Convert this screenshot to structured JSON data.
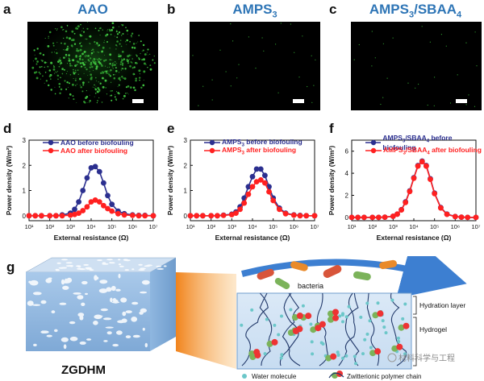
{
  "panels": {
    "a": {
      "letter": "a",
      "title": "AAO"
    },
    "b": {
      "letter": "b",
      "title_main": "AMPS",
      "title_sub": "3"
    },
    "c": {
      "letter": "c",
      "title_main": "AMPS",
      "title_sub1": "3",
      "title_mid": "/SBAA",
      "title_sub2": "4"
    },
    "d": {
      "letter": "d"
    },
    "e": {
      "letter": "e"
    },
    "f": {
      "letter": "f"
    },
    "g": {
      "letter": "g"
    }
  },
  "colors": {
    "before": "#2b2f8f",
    "after": "#ff2020",
    "title_blue": "#2e75b6",
    "arrow_blue": "#3d7fd1"
  },
  "chart_data": [
    {
      "type": "line",
      "ylabel": "Power density (W/m²)",
      "xlabel": "External resistance (Ω)",
      "x": [
        1,
        1.3,
        1.6,
        2,
        2.3,
        2.6,
        3,
        3.2,
        3.4,
        3.6,
        3.8,
        4,
        4.2,
        4.4,
        4.6,
        4.8,
        5,
        5.3,
        5.6,
        6,
        6.3,
        6.6,
        7
      ],
      "xlim": [
        1,
        7
      ],
      "ylim": [
        -0.2,
        3.0
      ],
      "yticks": [
        "0",
        "1",
        "2",
        "3"
      ],
      "xticks": [
        "10¹",
        "10²",
        "10³",
        "10⁴",
        "10⁵",
        "10⁶",
        "10⁷"
      ],
      "series": [
        {
          "name": "AAO before biofouling",
          "values": [
            0,
            0,
            0,
            0,
            0,
            0.03,
            0.1,
            0.25,
            0.55,
            1.0,
            1.5,
            1.9,
            1.95,
            1.75,
            1.3,
            0.8,
            0.45,
            0.18,
            0.08,
            0.03,
            0.01,
            0.01,
            0
          ]
        },
        {
          "name": "AAO after biofouling",
          "values": [
            0,
            0,
            0,
            0,
            0,
            0,
            0.02,
            0.05,
            0.1,
            0.2,
            0.35,
            0.55,
            0.62,
            0.55,
            0.4,
            0.28,
            0.18,
            0.08,
            0.03,
            0.01,
            0,
            0,
            0
          ]
        }
      ]
    },
    {
      "type": "line",
      "ylabel": "Power density (W/m²)",
      "xlabel": "External resistance (Ω)",
      "x": [
        1,
        1.3,
        1.6,
        2,
        2.3,
        2.6,
        3,
        3.2,
        3.4,
        3.6,
        3.8,
        4,
        4.2,
        4.4,
        4.6,
        4.8,
        5,
        5.3,
        5.6,
        6,
        6.3,
        6.6,
        7
      ],
      "xlim": [
        1,
        7
      ],
      "ylim": [
        -0.2,
        3.0
      ],
      "yticks": [
        "0",
        "1",
        "2",
        "3"
      ],
      "xticks": [
        "10¹",
        "10²",
        "10³",
        "10⁴",
        "10⁵",
        "10⁶",
        "10⁷"
      ],
      "series": [
        {
          "name": "AMPS3 before biofouling",
          "values": [
            0,
            0,
            0,
            0,
            0,
            0.02,
            0.06,
            0.15,
            0.35,
            0.7,
            1.15,
            1.55,
            1.85,
            1.85,
            1.6,
            1.15,
            0.7,
            0.3,
            0.1,
            0.03,
            0.01,
            0,
            0
          ]
        },
        {
          "name": "AMPS3 after biofouling",
          "values": [
            0,
            0,
            0,
            0,
            0,
            0.01,
            0.04,
            0.1,
            0.25,
            0.5,
            0.85,
            1.15,
            1.35,
            1.42,
            1.3,
            0.95,
            0.6,
            0.25,
            0.08,
            0.02,
            0,
            0,
            0
          ]
        }
      ]
    },
    {
      "type": "line",
      "ylabel": "Power density (W/m²)",
      "xlabel": "External resistance (Ω)",
      "x": [
        1,
        1.3,
        1.6,
        2,
        2.3,
        2.6,
        3,
        3.2,
        3.4,
        3.6,
        3.8,
        4,
        4.2,
        4.4,
        4.6,
        4.8,
        5,
        5.3,
        5.6,
        6,
        6.3,
        6.6,
        7
      ],
      "xlim": [
        1,
        7
      ],
      "ylim": [
        -0.3,
        7.0
      ],
      "yticks": [
        "0",
        "2",
        "4",
        "6"
      ],
      "xticks": [
        "10¹",
        "10²",
        "10³",
        "10⁴",
        "10⁵",
        "10⁶",
        "10⁷"
      ],
      "series": [
        {
          "name": "AMPS3/SBAA4 before biofouling",
          "values": [
            0,
            0,
            0,
            0,
            0,
            0.02,
            0.1,
            0.3,
            0.7,
            1.4,
            2.4,
            3.6,
            4.7,
            5.1,
            4.7,
            3.5,
            2.2,
            0.9,
            0.3,
            0.08,
            0.02,
            0,
            0
          ]
        },
        {
          "name": "AMPS3/SBAA4 after biofouling",
          "values": [
            0,
            0,
            0,
            0,
            0,
            0.02,
            0.1,
            0.3,
            0.68,
            1.35,
            2.35,
            3.55,
            4.65,
            5.05,
            4.65,
            3.45,
            2.15,
            0.85,
            0.28,
            0.07,
            0.02,
            0,
            0
          ]
        }
      ]
    }
  ],
  "legend": {
    "d": {
      "before": "AAO before biofouling",
      "after": "AAO after biofouling"
    },
    "e": {
      "before_main": "AMPS",
      "before_sub": "3",
      "before_rest": " before biofouling",
      "after_main": "AMPS",
      "after_sub": "3",
      "after_rest": " after biofouling"
    },
    "f": {
      "before_main": "AMPS",
      "before_sub1": "3",
      "before_mid": "/SBAA",
      "before_sub2": "4",
      "before_rest": " before biofouling",
      "after_main": "AMPS",
      "after_sub1": "3",
      "after_mid": "/SBAA",
      "after_sub2": "4",
      "after_rest": " after biofouling"
    }
  },
  "schematic": {
    "membrane_label": "ZGDHM",
    "bacteria_label": "bacteria",
    "hydration_label": "Hydration layer",
    "hydrogel_label": "Hydrogel",
    "legend_water": "Water molecule",
    "legend_chain": "Zwitterionic polymer chain",
    "plus": "+",
    "minus": "−"
  },
  "watermark": {
    "text": "材料科学与工程"
  }
}
